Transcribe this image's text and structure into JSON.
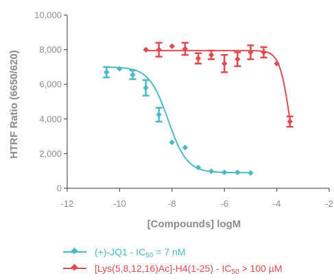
{
  "chart_data": {
    "type": "scatter",
    "xlabel": "[Compounds] logM",
    "ylabel": "HTRF Ratio (6650/620)",
    "xlim": [
      -12,
      -2
    ],
    "ylim": [
      0,
      10000
    ],
    "x_ticks": [
      "-12",
      "-10",
      "-8",
      "-6",
      "-4",
      "-2"
    ],
    "y_ticks": [
      "0",
      "2,000",
      "4,000",
      "6,000",
      "8,000",
      "10,000"
    ],
    "grid": false,
    "legend_position": "bottom",
    "series": [
      {
        "name": "(+)-JQ1 - IC50 = 7 nM",
        "legend": {
          "prefix": "(+)-JQ1 - IC",
          "sub": "50",
          "suffix": " = 7 nM"
        },
        "color": "#4bb9c4",
        "points": [
          {
            "x": -10.5,
            "y": 6700,
            "err": 300
          },
          {
            "x": -10.0,
            "y": 6900,
            "err": 0
          },
          {
            "x": -9.5,
            "y": 6550,
            "err": 250
          },
          {
            "x": -9.0,
            "y": 5800,
            "err": 450
          },
          {
            "x": -8.5,
            "y": 4250,
            "err": 400
          },
          {
            "x": -8.0,
            "y": 2650,
            "err": 0
          },
          {
            "x": -7.5,
            "y": 2350,
            "err": 0
          },
          {
            "x": -7.0,
            "y": 1200,
            "err": 0
          },
          {
            "x": -6.5,
            "y": 980,
            "err": 0
          },
          {
            "x": -6.0,
            "y": 920,
            "err": 0
          },
          {
            "x": -5.5,
            "y": 920,
            "err": 0
          },
          {
            "x": -5.0,
            "y": 880,
            "err": 0
          }
        ],
        "fit": {
          "top": 7000,
          "bottom": 900,
          "logIC50": -8.15,
          "hill": 1.2
        }
      },
      {
        "name": "[Lys(5,8,12,16)Ac]-H4(1-25) - IC50 > 100 µM",
        "legend": {
          "prefix": "[Lys(5,8,12,16)Ac]-H4(1-25) - IC",
          "sub": "50",
          "suffix": " > 100 µM"
        },
        "color": "#e04a4e",
        "points": [
          {
            "x": -9.0,
            "y": 8000,
            "err": 0
          },
          {
            "x": -8.5,
            "y": 8000,
            "err": 400
          },
          {
            "x": -8.0,
            "y": 8200,
            "err": 0
          },
          {
            "x": -7.5,
            "y": 8050,
            "err": 350
          },
          {
            "x": -7.0,
            "y": 7500,
            "err": 300
          },
          {
            "x": -6.5,
            "y": 7700,
            "err": 250
          },
          {
            "x": -6.0,
            "y": 7200,
            "err": 500
          },
          {
            "x": -5.5,
            "y": 7450,
            "err": 400
          },
          {
            "x": -5.0,
            "y": 7850,
            "err": 400
          },
          {
            "x": -4.5,
            "y": 7850,
            "err": 300
          },
          {
            "x": -4.0,
            "y": 7200,
            "err": 0
          },
          {
            "x": -3.5,
            "y": 3850,
            "err": 300
          }
        ],
        "fit": {
          "top": 7950,
          "bottom": 0,
          "logIC50": -3.5,
          "hill": 2.2
        }
      }
    ]
  }
}
